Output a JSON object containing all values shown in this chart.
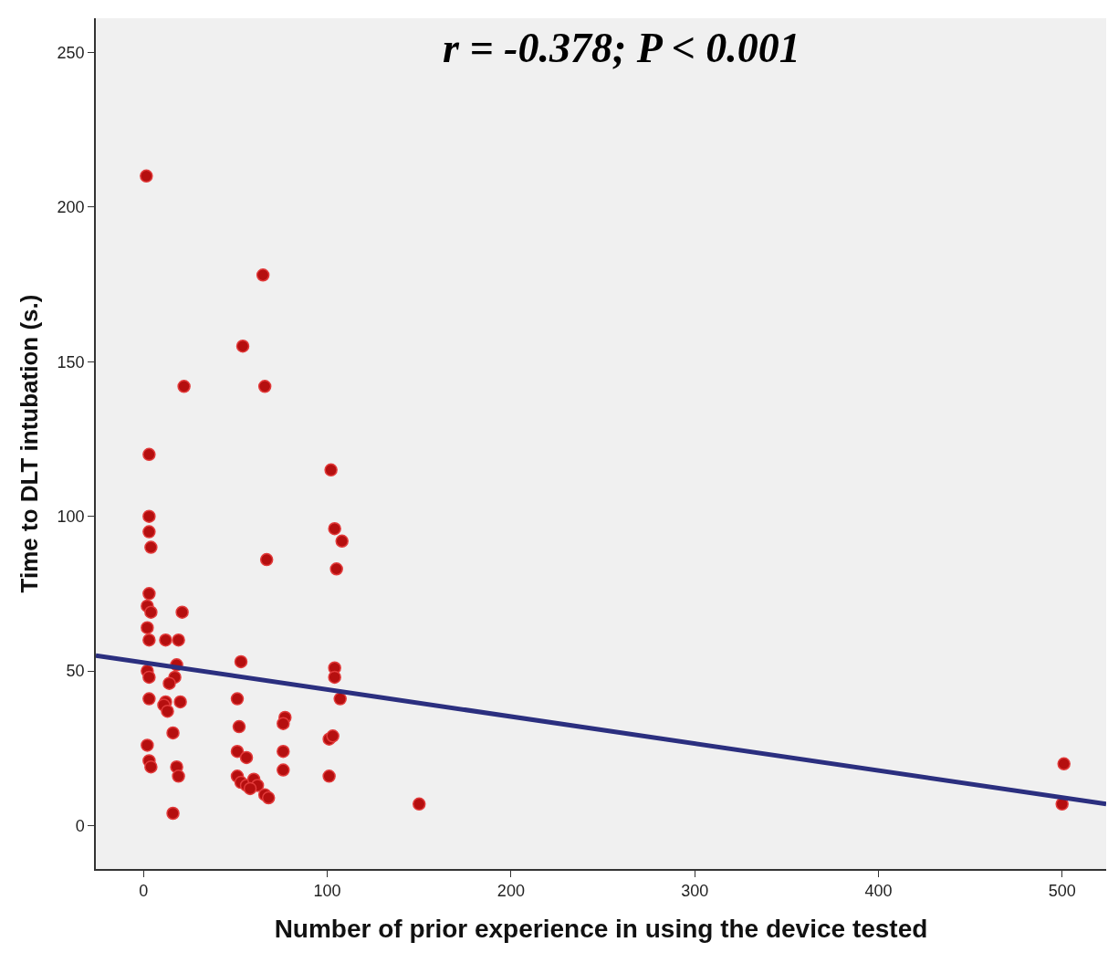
{
  "chart_data": {
    "type": "scatter",
    "xlabel": "Number of prior experience in using the device tested",
    "ylabel": "Time to DLT intubation (s.)",
    "annotations": [
      "r = -0.378; P < 0.001"
    ],
    "xlim": [
      -26,
      524
    ],
    "xticks": [
      0,
      100,
      200,
      300,
      400,
      500
    ],
    "ylim": [
      -14,
      261
    ],
    "yticks": [
      0,
      50,
      100,
      150,
      200,
      250
    ],
    "grid": false,
    "marker": "circle",
    "series": [
      {
        "color": "#b50f0f",
        "x": [
          1.5,
          3,
          3,
          3,
          4,
          3,
          2,
          4,
          2,
          3,
          2,
          3,
          3,
          2,
          3,
          4,
          22,
          21,
          12,
          19,
          18,
          17,
          14,
          12,
          20,
          11,
          13,
          16,
          18,
          19,
          16,
          54,
          65,
          66,
          67,
          53,
          51,
          52,
          51,
          56,
          51,
          53,
          56,
          60,
          62,
          66,
          68,
          58,
          77,
          76,
          76,
          76,
          102,
          104,
          108,
          105,
          104,
          104,
          107,
          101,
          103,
          101,
          150,
          501,
          500
        ],
        "values": [
          210,
          120,
          100,
          95,
          90,
          75,
          71,
          69,
          64,
          60,
          50,
          48,
          41,
          26,
          21,
          19,
          142,
          69,
          60,
          60,
          52,
          48,
          46,
          40,
          40,
          39,
          37,
          30,
          19,
          16,
          4,
          155,
          178,
          142,
          86,
          53,
          41,
          32,
          24,
          22,
          16,
          14,
          13,
          15,
          13,
          10,
          9,
          12,
          35,
          33,
          24,
          18,
          115,
          96,
          92,
          83,
          51,
          48,
          41,
          28,
          29,
          16,
          7,
          20,
          7
        ]
      },
      {
        "type": "line",
        "color": "#2b2f7f",
        "line_style": "solid",
        "marker": "none",
        "x": [
          -26,
          524
        ],
        "values": [
          55,
          7
        ]
      }
    ]
  }
}
